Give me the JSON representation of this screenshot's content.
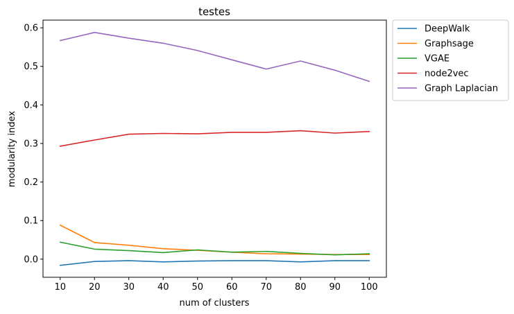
{
  "chart_data": {
    "type": "line",
    "title": "testes",
    "xlabel": "num of clusters",
    "ylabel": "modularity index",
    "x": [
      10,
      20,
      30,
      40,
      50,
      60,
      70,
      80,
      90,
      100
    ],
    "xlim": [
      5,
      105
    ],
    "ylim": [
      -0.047,
      0.62
    ],
    "xticks": [
      10,
      20,
      30,
      40,
      50,
      60,
      70,
      80,
      90,
      100
    ],
    "yticks": [
      0.0,
      0.1,
      0.2,
      0.3,
      0.4,
      0.5,
      0.6
    ],
    "ytick_labels": [
      "0.0",
      "0.1",
      "0.2",
      "0.3",
      "0.4",
      "0.5",
      "0.6"
    ],
    "grid": false,
    "legend_position": "outside upper-right",
    "series": [
      {
        "name": "DeepWalk",
        "color": "#1f77b4",
        "values": [
          -0.016,
          -0.006,
          -0.004,
          -0.007,
          -0.005,
          -0.004,
          -0.004,
          -0.007,
          -0.004,
          -0.004
        ]
      },
      {
        "name": "Graphsage",
        "color": "#ff7f0e",
        "values": [
          0.088,
          0.043,
          0.036,
          0.027,
          0.023,
          0.018,
          0.014,
          0.013,
          0.012,
          0.012
        ]
      },
      {
        "name": "VGAE",
        "color": "#2ca02c",
        "values": [
          0.044,
          0.026,
          0.022,
          0.017,
          0.024,
          0.018,
          0.02,
          0.015,
          0.011,
          0.014
        ]
      },
      {
        "name": "node2vec",
        "color": "#d62728",
        "values": [
          0.293,
          0.309,
          0.324,
          0.326,
          0.325,
          0.329,
          0.329,
          0.333,
          0.327,
          0.331
        ]
      },
      {
        "name": "Graph Laplacian",
        "color": "#9467bd",
        "values": [
          0.567,
          0.588,
          0.573,
          0.56,
          0.541,
          0.517,
          0.493,
          0.514,
          0.49,
          0.461
        ]
      }
    ]
  }
}
